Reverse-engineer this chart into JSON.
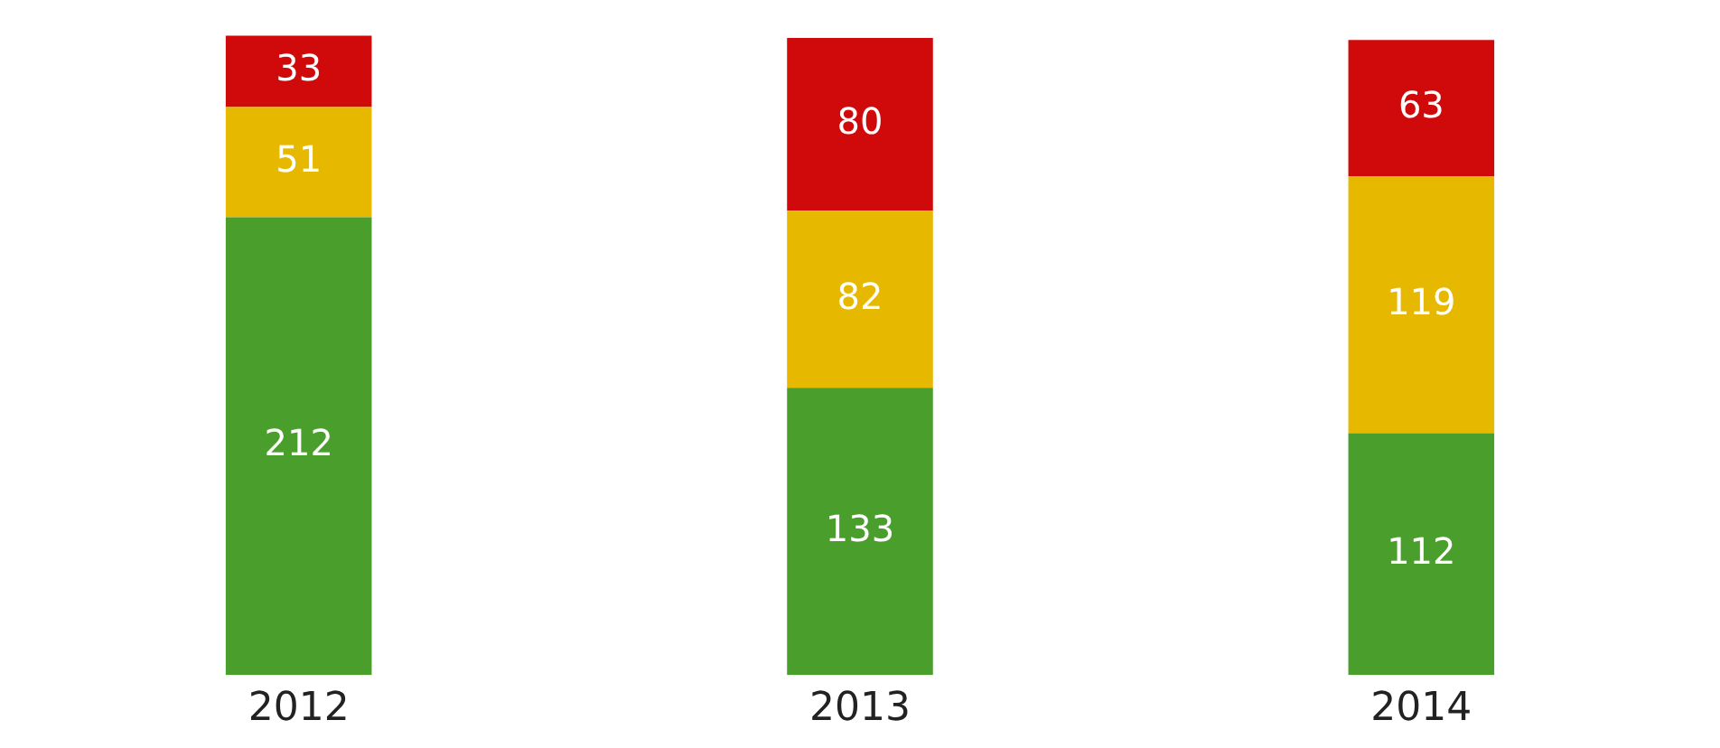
{
  "chart_data": {
    "type": "bar",
    "stacked": true,
    "categories": [
      "2012",
      "2013",
      "2014"
    ],
    "series": [
      {
        "color": "#4a9e2c",
        "values": [
          212,
          133,
          112
        ]
      },
      {
        "color": "#e6b800",
        "values": [
          51,
          82,
          119
        ]
      },
      {
        "color": "#d00a0a",
        "values": [
          33,
          80,
          63
        ]
      }
    ],
    "data_labels": true,
    "tick_labels": "x",
    "grid": false,
    "legend": false
  }
}
